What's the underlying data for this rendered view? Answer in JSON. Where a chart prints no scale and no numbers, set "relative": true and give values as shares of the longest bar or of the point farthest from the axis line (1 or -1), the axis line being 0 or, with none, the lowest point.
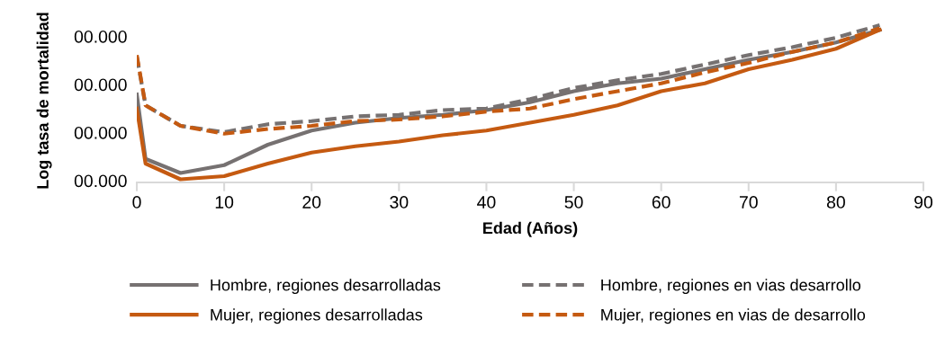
{
  "chart_data": {
    "type": "line",
    "relative": true,
    "xlabel": "Edad (Años)",
    "ylabel": "Log tasa de mortalidad",
    "annotations": [
      "00.000",
      "00.000",
      "00.000",
      "00.000"
    ],
    "x": [
      0,
      1,
      5,
      10,
      15,
      20,
      25,
      30,
      35,
      40,
      45,
      50,
      55,
      60,
      65,
      70,
      75,
      80,
      85
    ],
    "xlim": [
      0,
      90
    ],
    "xticks": [
      0,
      10,
      20,
      30,
      40,
      50,
      60,
      70,
      80,
      90
    ],
    "grid": false,
    "legend": "bottom",
    "marker": "none",
    "series": [
      {
        "name": "Hombre, regiones desarrolladas",
        "color": "#767171",
        "line_style": "solid",
        "values": [
          0.56,
          0.15,
          0.06,
          0.11,
          0.24,
          0.33,
          0.38,
          0.41,
          0.43,
          0.46,
          0.51,
          0.58,
          0.63,
          0.66,
          0.72,
          0.78,
          0.83,
          0.89,
          0.97
        ]
      },
      {
        "name": "Hombre, regiones en vias desarrollo",
        "color": "#767171",
        "line_style": "dashed",
        "values": [
          0.8,
          0.49,
          0.36,
          0.32,
          0.37,
          0.39,
          0.42,
          0.43,
          0.46,
          0.47,
          0.53,
          0.6,
          0.65,
          0.69,
          0.75,
          0.81,
          0.86,
          0.92,
          1
        ]
      },
      {
        "name": "Mujer, regiones desarrolladas",
        "color": "#c55a11",
        "line_style": "solid",
        "values": [
          0.47,
          0.12,
          0.02,
          0.04,
          0.12,
          0.19,
          0.23,
          0.26,
          0.3,
          0.33,
          0.38,
          0.43,
          0.49,
          0.58,
          0.63,
          0.72,
          0.78,
          0.85,
          0.97
        ]
      },
      {
        "name": "Mujer, regiones en vias de desarrollo",
        "color": "#c55a11",
        "line_style": "dashed",
        "values": [
          0.81,
          0.49,
          0.36,
          0.31,
          0.34,
          0.36,
          0.39,
          0.4,
          0.42,
          0.45,
          0.47,
          0.53,
          0.58,
          0.63,
          0.7,
          0.76,
          0.83,
          0.89,
          0.98
        ]
      }
    ]
  }
}
